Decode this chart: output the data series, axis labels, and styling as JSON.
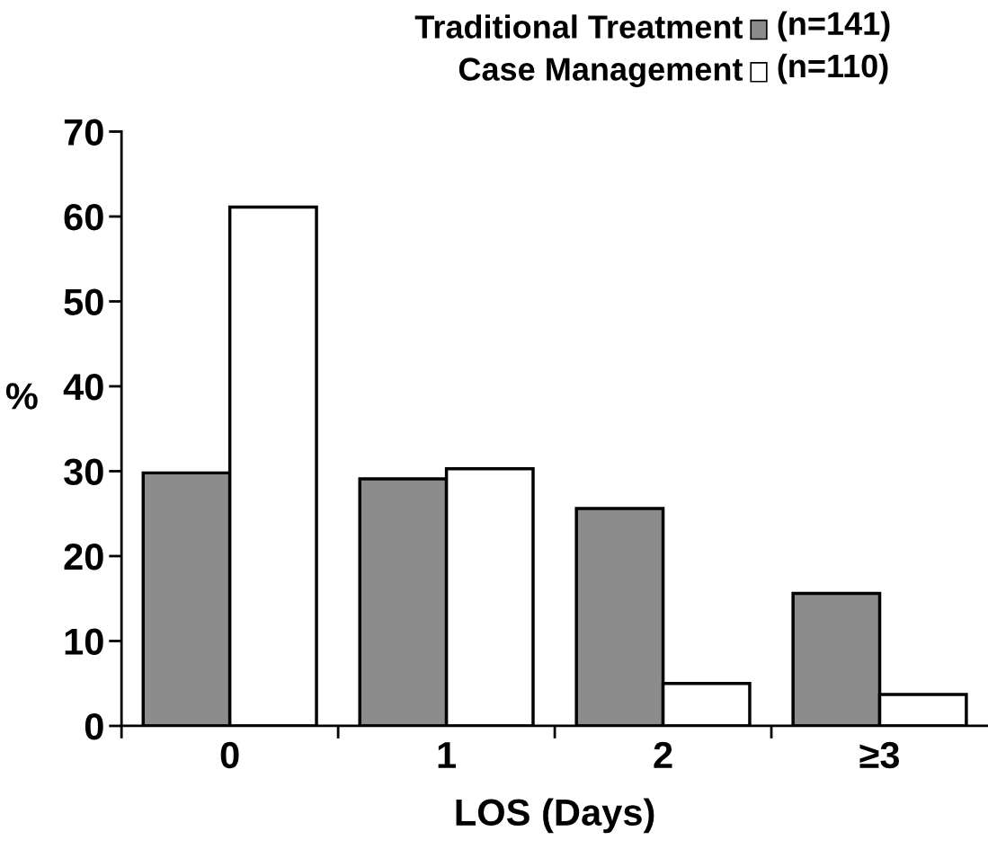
{
  "chart_data": {
    "type": "bar",
    "xlabel": "LOS (Days)",
    "ylabel": "%",
    "categories": [
      "0",
      "1",
      "2",
      "≥3"
    ],
    "series": [
      {
        "name": "Traditional Treatment",
        "color": "#8c8c8c",
        "values": [
          29.8,
          29.1,
          25.6,
          15.6
        ]
      },
      {
        "name": "Case Management",
        "color": "#ffffff",
        "values": [
          61.1,
          30.3,
          5.0,
          3.7
        ]
      }
    ],
    "annotations": [
      "(n=141)",
      "(n=110)"
    ],
    "ylim": [
      0,
      70
    ],
    "yticks": [
      0,
      10,
      20,
      30,
      40,
      50,
      60,
      70
    ],
    "grid": false,
    "legend": "top right"
  }
}
